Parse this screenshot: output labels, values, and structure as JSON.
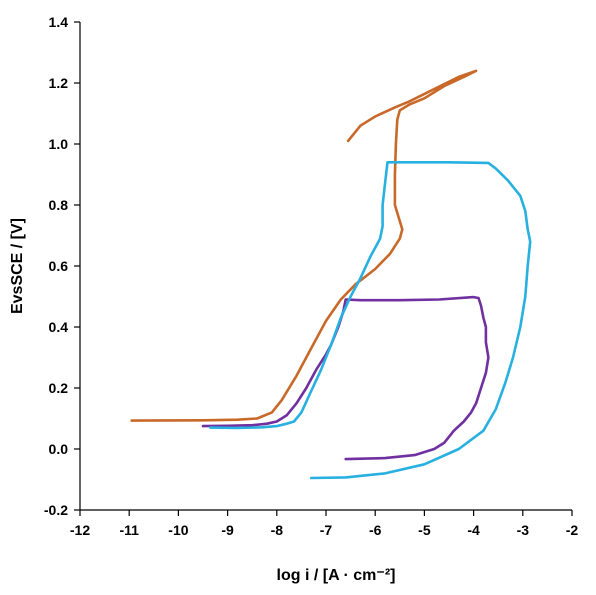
{
  "chart_data": {
    "type": "line",
    "xlabel": "log i / [A · cm⁻²]",
    "ylabel": "EvsSCE / [V]",
    "xlim": [
      -12,
      -2
    ],
    "ylim": [
      -0.2,
      1.4
    ],
    "x_ticks": [
      "-12",
      "-11",
      "-10",
      "-9",
      "-8",
      "-7",
      "-6",
      "-5",
      "-4",
      "-3",
      "-2"
    ],
    "y_ticks": [
      "-0.2",
      "0.0",
      "0.2",
      "0.4",
      "0.6",
      "0.8",
      "1.0",
      "1.2",
      "1.4"
    ],
    "grid": false,
    "legend": "none",
    "series": [
      {
        "color": "#c8692a",
        "points": [
          [
            -10.95,
            0.093
          ],
          [
            -9.5,
            0.094
          ],
          [
            -8.8,
            0.096
          ],
          [
            -8.4,
            0.1
          ],
          [
            -8.1,
            0.12
          ],
          [
            -7.9,
            0.16
          ],
          [
            -7.6,
            0.24
          ],
          [
            -7.3,
            0.33
          ],
          [
            -7.0,
            0.42
          ],
          [
            -6.7,
            0.49
          ],
          [
            -6.4,
            0.54
          ],
          [
            -6.0,
            0.59
          ],
          [
            -5.7,
            0.64
          ],
          [
            -5.5,
            0.69
          ],
          [
            -5.45,
            0.72
          ],
          [
            -5.6,
            0.8
          ],
          [
            -5.6,
            0.9
          ],
          [
            -5.58,
            1.0
          ],
          [
            -5.55,
            1.08
          ],
          [
            -5.5,
            1.11
          ],
          [
            -5.3,
            1.13
          ],
          [
            -5.0,
            1.15
          ],
          [
            -4.6,
            1.19
          ],
          [
            -4.2,
            1.22
          ],
          [
            -3.95,
            1.24
          ],
          [
            -4.3,
            1.22
          ],
          [
            -4.8,
            1.18
          ],
          [
            -5.3,
            1.14
          ],
          [
            -5.6,
            1.12
          ],
          [
            -6.0,
            1.09
          ],
          [
            -6.3,
            1.06
          ],
          [
            -6.55,
            1.01
          ]
        ]
      },
      {
        "color": "#7030a0",
        "points": [
          [
            -9.5,
            0.075
          ],
          [
            -9.0,
            0.076
          ],
          [
            -8.5,
            0.078
          ],
          [
            -8.2,
            0.083
          ],
          [
            -8.0,
            0.09
          ],
          [
            -7.8,
            0.11
          ],
          [
            -7.6,
            0.15
          ],
          [
            -7.4,
            0.2
          ],
          [
            -7.2,
            0.26
          ],
          [
            -7.0,
            0.31
          ],
          [
            -6.9,
            0.34
          ],
          [
            -6.75,
            0.4
          ],
          [
            -6.65,
            0.45
          ],
          [
            -6.6,
            0.49
          ],
          [
            -6.3,
            0.488
          ],
          [
            -5.5,
            0.488
          ],
          [
            -4.7,
            0.49
          ],
          [
            -4.0,
            0.498
          ],
          [
            -3.9,
            0.495
          ],
          [
            -3.85,
            0.47
          ],
          [
            -3.8,
            0.43
          ],
          [
            -3.75,
            0.4
          ],
          [
            -3.75,
            0.35
          ],
          [
            -3.7,
            0.3
          ],
          [
            -3.75,
            0.25
          ],
          [
            -3.85,
            0.2
          ],
          [
            -3.95,
            0.15
          ],
          [
            -4.05,
            0.12
          ],
          [
            -4.2,
            0.09
          ],
          [
            -4.4,
            0.06
          ],
          [
            -4.6,
            0.02
          ],
          [
            -4.8,
            0.0
          ],
          [
            -5.2,
            -0.02
          ],
          [
            -5.8,
            -0.03
          ],
          [
            -6.6,
            -0.033
          ]
        ]
      },
      {
        "color": "#27b0e0",
        "points": [
          [
            -9.35,
            0.07
          ],
          [
            -8.8,
            0.069
          ],
          [
            -8.3,
            0.071
          ],
          [
            -8.0,
            0.075
          ],
          [
            -7.8,
            0.083
          ],
          [
            -7.65,
            0.09
          ],
          [
            -7.5,
            0.12
          ],
          [
            -7.3,
            0.19
          ],
          [
            -7.1,
            0.26
          ],
          [
            -6.9,
            0.34
          ],
          [
            -6.7,
            0.43
          ],
          [
            -6.5,
            0.5
          ],
          [
            -6.3,
            0.56
          ],
          [
            -6.1,
            0.63
          ],
          [
            -5.9,
            0.69
          ],
          [
            -5.85,
            0.73
          ],
          [
            -5.85,
            0.8
          ],
          [
            -5.8,
            0.87
          ],
          [
            -5.75,
            0.94
          ],
          [
            -5.2,
            0.94
          ],
          [
            -4.5,
            0.94
          ],
          [
            -3.7,
            0.938
          ],
          [
            -3.55,
            0.92
          ],
          [
            -3.3,
            0.88
          ],
          [
            -3.05,
            0.83
          ],
          [
            -2.95,
            0.78
          ],
          [
            -2.9,
            0.72
          ],
          [
            -2.85,
            0.68
          ],
          [
            -2.9,
            0.6
          ],
          [
            -2.95,
            0.5
          ],
          [
            -3.05,
            0.4
          ],
          [
            -3.2,
            0.3
          ],
          [
            -3.35,
            0.22
          ],
          [
            -3.55,
            0.13
          ],
          [
            -3.8,
            0.06
          ],
          [
            -4.3,
            0.0
          ],
          [
            -5.0,
            -0.05
          ],
          [
            -5.8,
            -0.08
          ],
          [
            -6.6,
            -0.093
          ],
          [
            -7.3,
            -0.095
          ]
        ]
      }
    ]
  }
}
